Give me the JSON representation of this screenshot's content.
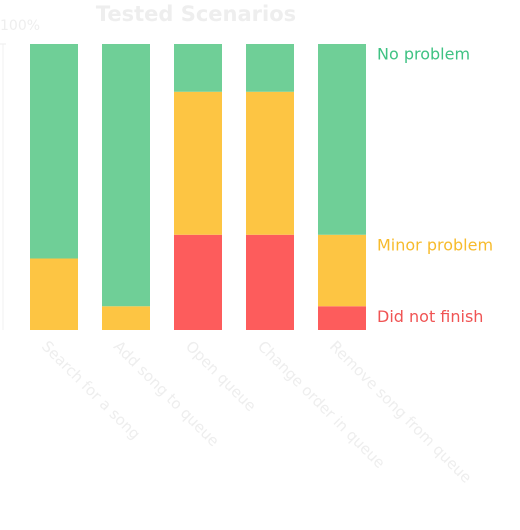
{
  "chart_data": {
    "type": "stacked_bar",
    "title": "Tested Scenarios",
    "categories": [
      "Search for a song",
      "Add song to queue",
      "Open queue",
      "Change order in queue",
      "Remove song from queue"
    ],
    "series": [
      {
        "name": "Did not finish",
        "color": "#fd5c5c",
        "label_color": "#f05454",
        "values": [
          0,
          0,
          33.3,
          33.3,
          8.3
        ]
      },
      {
        "name": "Minor problem",
        "color": "#fdc543",
        "label_color": "#f7bb2c",
        "values": [
          25,
          8.3,
          50,
          50,
          25
        ]
      },
      {
        "name": "No problem",
        "color": "#6fcf97",
        "label_color": "#3fc283",
        "values": [
          75,
          91.7,
          16.7,
          16.7,
          66.7
        ]
      }
    ],
    "ylim": [
      0,
      100
    ],
    "yticks": [
      {
        "value": 100,
        "label": "100%"
      }
    ]
  }
}
